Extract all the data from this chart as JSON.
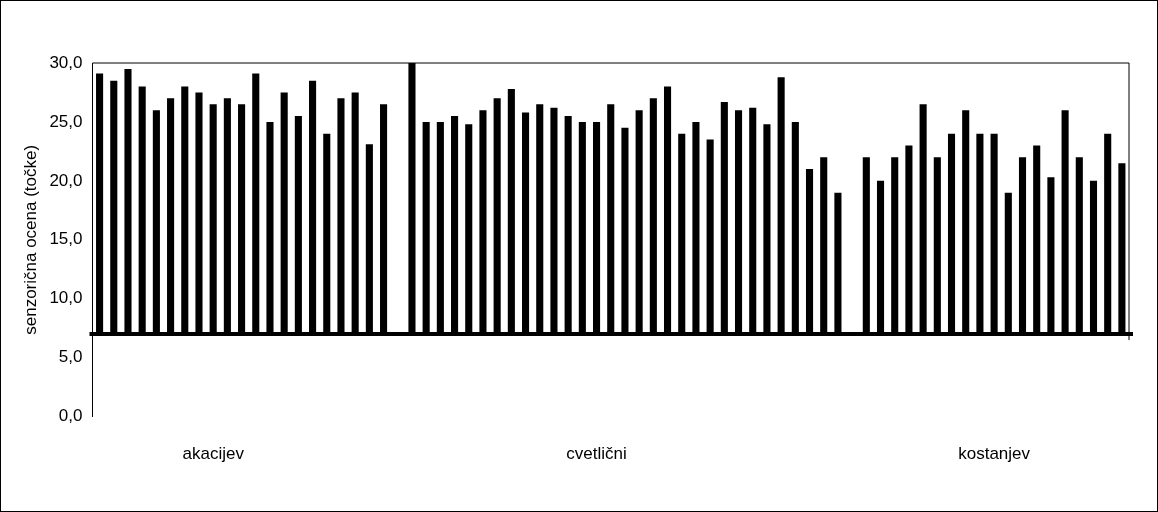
{
  "chart_data": {
    "type": "bar",
    "ylabel": "senzorična ocena (točke)",
    "categories": [
      null,
      null,
      null,
      null,
      null,
      null,
      null,
      null,
      "akacijev",
      null,
      null,
      null,
      null,
      null,
      null,
      null,
      null,
      null,
      null,
      null,
      null,
      null,
      null,
      null,
      null,
      null,
      null,
      null,
      null,
      null,
      null,
      null,
      null,
      null,
      null,
      "cvetlični",
      null,
      null,
      null,
      null,
      null,
      null,
      null,
      null,
      null,
      null,
      null,
      null,
      null,
      null,
      null,
      null,
      null,
      null,
      null,
      null,
      null,
      null,
      null,
      null,
      null,
      null,
      null,
      "kostanjev",
      null,
      null,
      null,
      null,
      null,
      null,
      null,
      null,
      null
    ],
    "values": [
      22.1,
      21.5,
      22.5,
      21.0,
      19.0,
      20.0,
      21.0,
      20.5,
      19.5,
      20.0,
      19.5,
      22.1,
      18.0,
      20.5,
      18.5,
      21.5,
      17.0,
      20.0,
      20.5,
      16.1,
      19.5,
      null,
      23.0,
      18.0,
      18.0,
      18.5,
      17.8,
      19.0,
      20.0,
      20.8,
      18.8,
      19.5,
      19.2,
      18.5,
      18.0,
      18.0,
      19.5,
      17.5,
      19.0,
      20.0,
      21.0,
      17.0,
      18.0,
      16.5,
      19.7,
      19.0,
      19.2,
      17.8,
      21.8,
      18.0,
      14.0,
      15.0,
      12.0,
      null,
      15.0,
      13.0,
      15.0,
      16.0,
      19.5,
      15.0,
      17.0,
      19.0,
      17.0,
      17.0,
      12.0,
      15.0,
      16.0,
      13.3,
      19.0,
      15.0,
      13.0,
      17.0,
      14.5
    ],
    "base": [
      7,
      7,
      7,
      7,
      7,
      7,
      7,
      7,
      7,
      7,
      7,
      7,
      7,
      7,
      7,
      7,
      7,
      7,
      7,
      7,
      7,
      null,
      7,
      7,
      7,
      7,
      7,
      7,
      7,
      7,
      7,
      7,
      7,
      7,
      7,
      7,
      7,
      7,
      7,
      7,
      7,
      7,
      7,
      7,
      7,
      7,
      7,
      7,
      7,
      7,
      7,
      7,
      7,
      null,
      7,
      7,
      7,
      7,
      7,
      7,
      7,
      7,
      7,
      7,
      7,
      7,
      7,
      7,
      7,
      7,
      7,
      7,
      7
    ],
    "color": "#000000",
    "ylim": [
      0,
      30
    ],
    "yticks": [
      {
        "value": 0,
        "label": "0,0"
      },
      {
        "value": 5,
        "label": "5,0"
      },
      {
        "value": 10,
        "label": "10,0"
      },
      {
        "value": 15,
        "label": "15,0"
      },
      {
        "value": 20,
        "label": "20,0"
      },
      {
        "value": 25,
        "label": "25,0"
      },
      {
        "value": 30,
        "label": "30,0"
      }
    ],
    "ref_lines": [
      {
        "axis": "y",
        "value": 7,
        "color": "#000000"
      }
    ],
    "grid": false,
    "legend": false
  }
}
